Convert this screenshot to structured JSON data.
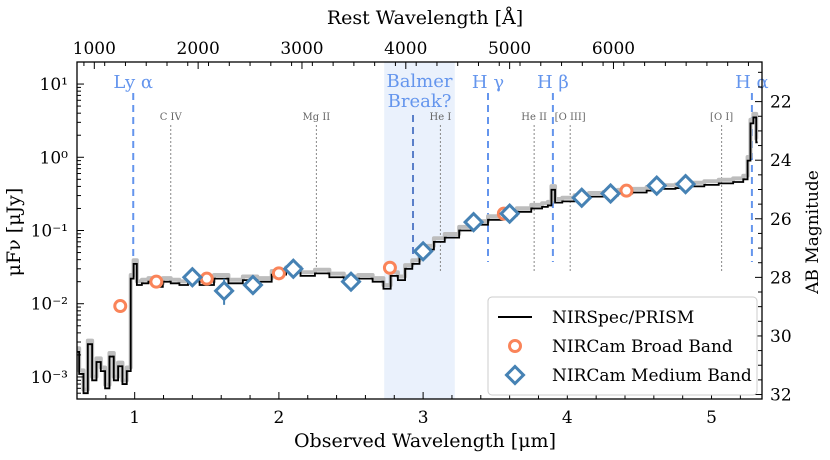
{
  "chart_data": {
    "type": "scatter",
    "xlabel": "Observed Wavelength [μm]",
    "ylabel": "μFν [μJy]",
    "top_xlabel": "Rest Wavelength [Å]",
    "right_ylabel": "AB Magnitude",
    "xlim": [
      0.6,
      5.35
    ],
    "ylim": [
      0.0005,
      20
    ],
    "yscale": "log",
    "x_ticks": [
      "1",
      "2",
      "3",
      "4",
      "5"
    ],
    "y_ticks": [
      "10⁻³",
      "10⁻²",
      "10⁻¹",
      "10⁰",
      "10¹"
    ],
    "top_ticks": [
      "1000",
      "2000",
      "3000",
      "4000",
      "5000",
      "6000"
    ],
    "right_ticks": [
      "22",
      "24",
      "26",
      "28",
      "30",
      "32"
    ],
    "redshift_factor": 7.2,
    "balmer_region": {
      "x_range": [
        2.73,
        3.22
      ],
      "label_line1": "Balmer",
      "label_line2": "Break?"
    },
    "strong_lines": [
      {
        "name": "Ly α",
        "x": 0.99
      },
      {
        "name": "H γ",
        "x": 3.45
      },
      {
        "name": "H β",
        "x": 3.9
      },
      {
        "name": "H α",
        "x": 5.28
      }
    ],
    "balmer_break_line_x": 2.93,
    "weak_lines": [
      {
        "name": "C IV",
        "x": 1.25
      },
      {
        "name": "Mg II",
        "x": 2.26
      },
      {
        "name": "He I",
        "x": 3.12
      },
      {
        "name": "He II",
        "x": 3.77
      },
      {
        "name": "[O III]",
        "x": 4.02
      },
      {
        "name": "[O I]",
        "x": 5.07
      }
    ],
    "series": [
      {
        "name": "NIRSpec/PRISM",
        "style": "step-line",
        "color": "#000000",
        "x": [
          0.6,
          0.63,
          0.66,
          0.69,
          0.72,
          0.75,
          0.78,
          0.81,
          0.84,
          0.87,
          0.9,
          0.93,
          0.96,
          0.985,
          1.0,
          1.03,
          1.07,
          1.12,
          1.17,
          1.22,
          1.28,
          1.34,
          1.4,
          1.5,
          1.6,
          1.7,
          1.8,
          1.9,
          2.0,
          2.1,
          2.2,
          2.3,
          2.4,
          2.5,
          2.6,
          2.7,
          2.75,
          2.8,
          2.85,
          2.9,
          2.95,
          3.0,
          3.05,
          3.1,
          3.2,
          3.3,
          3.4,
          3.5,
          3.6,
          3.7,
          3.8,
          3.85,
          3.88,
          3.9,
          3.93,
          4.0,
          4.1,
          4.2,
          4.3,
          4.4,
          4.5,
          4.6,
          4.7,
          4.8,
          4.9,
          5.0,
          5.1,
          5.2,
          5.24,
          5.26,
          5.28,
          5.3,
          5.32
        ],
        "y": [
          0.0022,
          0.0011,
          0.0006,
          0.0028,
          0.0009,
          0.0016,
          0.0012,
          0.0007,
          0.0019,
          0.0009,
          0.0014,
          0.0008,
          0.0012,
          0.022,
          0.035,
          0.018,
          0.019,
          0.02,
          0.017,
          0.02,
          0.019,
          0.018,
          0.021,
          0.018,
          0.022,
          0.019,
          0.021,
          0.02,
          0.025,
          0.028,
          0.024,
          0.026,
          0.023,
          0.021,
          0.022,
          0.02,
          0.016,
          0.024,
          0.021,
          0.03,
          0.035,
          0.045,
          0.055,
          0.07,
          0.08,
          0.1,
          0.12,
          0.14,
          0.16,
          0.18,
          0.2,
          0.21,
          0.22,
          0.36,
          0.24,
          0.25,
          0.27,
          0.29,
          0.3,
          0.32,
          0.33,
          0.35,
          0.37,
          0.38,
          0.4,
          0.42,
          0.44,
          0.46,
          0.5,
          0.9,
          2.9,
          3.5,
          1.6
        ]
      },
      {
        "name": "NIRCam Broad Band",
        "style": "circle",
        "color": "#FA8459",
        "x": [
          0.9,
          1.15,
          1.5,
          2.0,
          2.77,
          3.56,
          4.41
        ],
        "y": [
          0.0093,
          0.02,
          0.022,
          0.026,
          0.031,
          0.17,
          0.35
        ]
      },
      {
        "name": "NIRCam Medium Band",
        "style": "diamond",
        "color": "#4682B4",
        "x": [
          1.4,
          1.62,
          1.82,
          2.1,
          2.5,
          3.0,
          3.35,
          3.6,
          4.1,
          4.3,
          4.62,
          4.82
        ],
        "y": [
          0.023,
          0.015,
          0.018,
          0.03,
          0.02,
          0.052,
          0.13,
          0.17,
          0.28,
          0.32,
          0.41,
          0.43
        ]
      }
    ],
    "legend": {
      "placement": "lower-right"
    }
  }
}
